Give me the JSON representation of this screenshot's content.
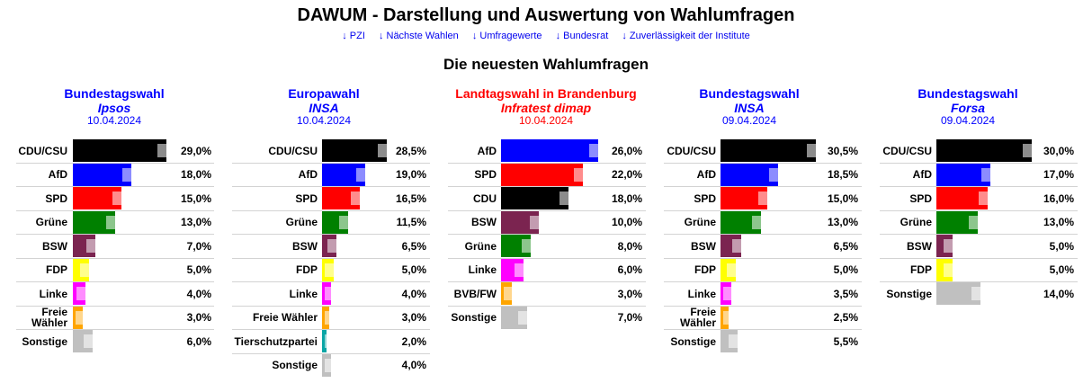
{
  "header": {
    "title": "DAWUM - Darstellung und Auswertung von Wahlumfragen",
    "nav_links": [
      "↓ PZI",
      "↓ Nächste Wahlen",
      "↓ Umfragewerte",
      "↓ Bundesrat",
      "↓ Zuverlässigkeit der Institute"
    ],
    "section_title": "Die neuesten Wahlumfragen"
  },
  "colors": {
    "federal": "#0000ff",
    "state": "#ff0000",
    "link": "#0000ee"
  },
  "polls": [
    {
      "election": "Bundestagswahl",
      "institute": "Ipsos",
      "date": "10.04.2024",
      "color": "#0000ff",
      "parties": [
        {
          "name": "CDU/CSU",
          "value": 29.0,
          "label": "29,0%",
          "color": "#000000"
        },
        {
          "name": "AfD",
          "value": 18.0,
          "label": "18,0%",
          "color": "#0000ff"
        },
        {
          "name": "SPD",
          "value": 15.0,
          "label": "15,0%",
          "color": "#ff0000"
        },
        {
          "name": "Grüne",
          "value": 13.0,
          "label": "13,0%",
          "color": "#008000"
        },
        {
          "name": "BSW",
          "value": 7.0,
          "label": "7,0%",
          "color": "#7b2450"
        },
        {
          "name": "FDP",
          "value": 5.0,
          "label": "5,0%",
          "color": "#ffff00"
        },
        {
          "name": "Linke",
          "value": 4.0,
          "label": "4,0%",
          "color": "#ff00ff"
        },
        {
          "name": "Freie Wähler",
          "value": 3.0,
          "label": "3,0%",
          "color": "#ffa500"
        },
        {
          "name": "Sonstige",
          "value": 6.0,
          "label": "6,0%",
          "color": "#c0c0c0"
        }
      ]
    },
    {
      "election": "Europawahl",
      "institute": "INSA",
      "date": "10.04.2024",
      "color": "#0000ff",
      "parties": [
        {
          "name": "CDU/CSU",
          "value": 28.5,
          "label": "28,5%",
          "color": "#000000"
        },
        {
          "name": "AfD",
          "value": 19.0,
          "label": "19,0%",
          "color": "#0000ff"
        },
        {
          "name": "SPD",
          "value": 16.5,
          "label": "16,5%",
          "color": "#ff0000"
        },
        {
          "name": "Grüne",
          "value": 11.5,
          "label": "11,5%",
          "color": "#008000"
        },
        {
          "name": "BSW",
          "value": 6.5,
          "label": "6,5%",
          "color": "#7b2450"
        },
        {
          "name": "FDP",
          "value": 5.0,
          "label": "5,0%",
          "color": "#ffff00"
        },
        {
          "name": "Linke",
          "value": 4.0,
          "label": "4,0%",
          "color": "#ff00ff"
        },
        {
          "name": "Freie Wähler",
          "value": 3.0,
          "label": "3,0%",
          "color": "#ffa500"
        },
        {
          "name": "Tierschutzpartei",
          "value": 2.0,
          "label": "2,0%",
          "color": "#0aa5a5"
        },
        {
          "name": "Sonstige",
          "value": 4.0,
          "label": "4,0%",
          "color": "#c0c0c0"
        }
      ]
    },
    {
      "election": "Landtagswahl in Brandenburg",
      "institute": "Infratest dimap",
      "date": "10.04.2024",
      "color": "#ff0000",
      "parties": [
        {
          "name": "AfD",
          "value": 26.0,
          "label": "26,0%",
          "color": "#0000ff"
        },
        {
          "name": "SPD",
          "value": 22.0,
          "label": "22,0%",
          "color": "#ff0000"
        },
        {
          "name": "CDU",
          "value": 18.0,
          "label": "18,0%",
          "color": "#000000"
        },
        {
          "name": "BSW",
          "value": 10.0,
          "label": "10,0%",
          "color": "#7b2450"
        },
        {
          "name": "Grüne",
          "value": 8.0,
          "label": "8,0%",
          "color": "#008000"
        },
        {
          "name": "Linke",
          "value": 6.0,
          "label": "6,0%",
          "color": "#ff00ff"
        },
        {
          "name": "BVB/FW",
          "value": 3.0,
          "label": "3,0%",
          "color": "#ffa500"
        },
        {
          "name": "Sonstige",
          "value": 7.0,
          "label": "7,0%",
          "color": "#c0c0c0"
        }
      ]
    },
    {
      "election": "Bundestagswahl",
      "institute": "INSA",
      "date": "09.04.2024",
      "color": "#0000ff",
      "parties": [
        {
          "name": "CDU/CSU",
          "value": 30.5,
          "label": "30,5%",
          "color": "#000000"
        },
        {
          "name": "AfD",
          "value": 18.5,
          "label": "18,5%",
          "color": "#0000ff"
        },
        {
          "name": "SPD",
          "value": 15.0,
          "label": "15,0%",
          "color": "#ff0000"
        },
        {
          "name": "Grüne",
          "value": 13.0,
          "label": "13,0%",
          "color": "#008000"
        },
        {
          "name": "BSW",
          "value": 6.5,
          "label": "6,5%",
          "color": "#7b2450"
        },
        {
          "name": "FDP",
          "value": 5.0,
          "label": "5,0%",
          "color": "#ffff00"
        },
        {
          "name": "Linke",
          "value": 3.5,
          "label": "3,5%",
          "color": "#ff00ff"
        },
        {
          "name": "Freie Wähler",
          "value": 2.5,
          "label": "2,5%",
          "color": "#ffa500"
        },
        {
          "name": "Sonstige",
          "value": 5.5,
          "label": "5,5%",
          "color": "#c0c0c0"
        }
      ]
    },
    {
      "election": "Bundestagswahl",
      "institute": "Forsa",
      "date": "09.04.2024",
      "color": "#0000ff",
      "parties": [
        {
          "name": "CDU/CSU",
          "value": 30.0,
          "label": "30,0%",
          "color": "#000000"
        },
        {
          "name": "AfD",
          "value": 17.0,
          "label": "17,0%",
          "color": "#0000ff"
        },
        {
          "name": "SPD",
          "value": 16.0,
          "label": "16,0%",
          "color": "#ff0000"
        },
        {
          "name": "Grüne",
          "value": 13.0,
          "label": "13,0%",
          "color": "#008000"
        },
        {
          "name": "BSW",
          "value": 5.0,
          "label": "5,0%",
          "color": "#7b2450"
        },
        {
          "name": "FDP",
          "value": 5.0,
          "label": "5,0%",
          "color": "#ffff00"
        },
        {
          "name": "Sonstige",
          "value": 14.0,
          "label": "14,0%",
          "color": "#c0c0c0"
        }
      ]
    }
  ]
}
